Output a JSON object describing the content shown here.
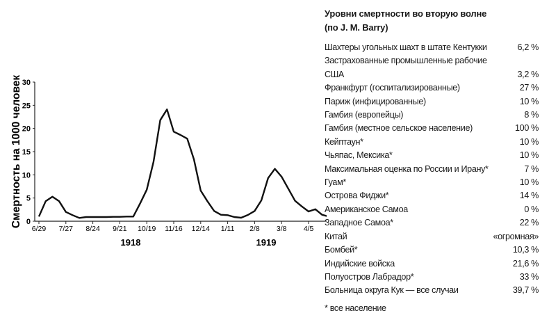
{
  "chart_data": {
    "type": "line",
    "ylabel": "Смертность на 1000 человек",
    "xlabel": "",
    "ylim": [
      0,
      30
    ],
    "yticks": [
      "0",
      "5",
      "10",
      "15",
      "20",
      "25",
      "30"
    ],
    "xticks": [
      "6/29",
      "7/27",
      "8/24",
      "9/21",
      "10/19",
      "11/16",
      "12/14",
      "1/11",
      "2/8",
      "3/8",
      "4/5"
    ],
    "year_labels": [
      "1918",
      "1919"
    ],
    "grid": false,
    "x": [
      "1918-06-29",
      "1918-07-06",
      "1918-07-13",
      "1918-07-20",
      "1918-07-27",
      "1918-08-03",
      "1918-08-10",
      "1918-08-17",
      "1918-08-24",
      "1918-08-31",
      "1918-09-07",
      "1918-09-14",
      "1918-09-21",
      "1918-09-28",
      "1918-10-05",
      "1918-10-12",
      "1918-10-19",
      "1918-10-26",
      "1918-11-02",
      "1918-11-09",
      "1918-11-16",
      "1918-11-23",
      "1918-11-30",
      "1918-12-07",
      "1918-12-14",
      "1918-12-21",
      "1918-12-28",
      "1919-01-04",
      "1919-01-11",
      "1919-01-18",
      "1919-01-25",
      "1919-02-01",
      "1919-02-08",
      "1919-02-15",
      "1919-02-22",
      "1919-03-01",
      "1919-03-08",
      "1919-03-15",
      "1919-03-22",
      "1919-03-29",
      "1919-04-05",
      "1919-04-12",
      "1919-04-19",
      "1919-04-26"
    ],
    "values": [
      1.0,
      4.3,
      5.3,
      4.3,
      2.0,
      1.3,
      0.7,
      0.9,
      0.9,
      0.9,
      0.9,
      0.95,
      0.95,
      1.0,
      1.0,
      3.8,
      6.8,
      12.8,
      21.8,
      24.1,
      19.3,
      18.6,
      17.8,
      13.3,
      6.6,
      4.3,
      2.2,
      1.4,
      1.3,
      0.9,
      0.75,
      1.35,
      2.2,
      4.5,
      9.3,
      11.3,
      9.6,
      7.0,
      4.4,
      3.2,
      2.1,
      2.6,
      1.4,
      1.0
    ]
  },
  "table": {
    "title_line1": "Уровни смертности во вторую волне",
    "title_line2": "(по J. M. Barry)",
    "rows": [
      {
        "label": "Шахтеры угольных шахт в штате Кентукки",
        "value": "6,2 %"
      },
      {
        "label": "Застрахованные промышленные рабочие\n      США",
        "value": "3,2 %"
      },
      {
        "label": "Франкфурт (госпитализированные)",
        "value": "27 %"
      },
      {
        "label": "Париж (инфицированные)",
        "value": "10 %"
      },
      {
        "label": "Гамбия (европейцы)",
        "value": "8 %"
      },
      {
        "label": "Гамбия (местное сельское население)",
        "value": "100 %"
      },
      {
        "label": "Кейптаун*",
        "value": "10 %"
      },
      {
        "label": "Чьяпас, Мексика*",
        "value": "10 %"
      },
      {
        "label": "Максимальная оценка по России и Ирану*",
        "value": "7 %"
      },
      {
        "label": "Гуам*",
        "value": "10 %"
      },
      {
        "label": "Острова Фиджи*",
        "value": "14 %"
      },
      {
        "label": "Американское Самоа",
        "value": "0 %"
      },
      {
        "label": "Западное Самоа*",
        "value": "22 %"
      },
      {
        "label": "Китай",
        "value": "«огромная»"
      },
      {
        "label": "Бомбей*",
        "value": "10,3 %"
      },
      {
        "label": "Индийские войска",
        "value": "21,6 %"
      },
      {
        "label": "Полуостров Лабрадор*",
        "value": "33 %"
      },
      {
        "label": "Больница округа Кук — все случаи",
        "value": "39,7 %"
      }
    ],
    "footnote": "* все население"
  }
}
